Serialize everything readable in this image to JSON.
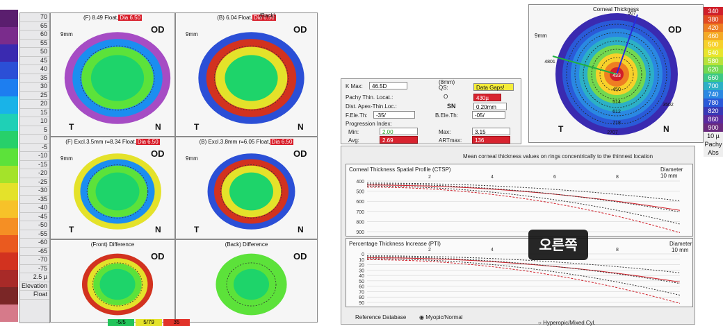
{
  "left_scale": {
    "colors": [
      "#5a1e6e",
      "#7a2c8c",
      "#3a2ab0",
      "#2b4fd6",
      "#1d7ef0",
      "#19b3e8",
      "#1fd0b6",
      "#27d06a",
      "#5ce23a",
      "#a4e32a",
      "#e4e22a",
      "#f7c229",
      "#f58f24",
      "#ea5a1f",
      "#d2321f",
      "#a82a28",
      "#7a2626",
      "#d67a8a"
    ],
    "labels": [
      "70",
      "65",
      "60",
      "55",
      "50",
      "45",
      "40",
      "35",
      "30",
      "25",
      "20",
      "15",
      "10",
      "5",
      "0",
      "-5",
      "-10",
      "-15",
      "-20",
      "-25",
      "-30",
      "-35",
      "-40",
      "-45",
      "-50",
      "-55",
      "-60",
      "-65",
      "-70",
      "-75",
      "2.5 µ",
      "Elevation",
      "Float"
    ]
  },
  "maps": [
    {
      "caption": "(F) 8.49 Float,",
      "cap_red": "Dia 6.50",
      "od": "OD",
      "t": "T",
      "n": "N",
      "mag": "9mm"
    },
    {
      "caption": "(B) 6.04 Float,",
      "cap_red": "Dia 6.50",
      "od": "OD",
      "t": "T",
      "n": "N",
      "mag": "9mm",
      "header": "(Back)"
    },
    {
      "caption": "(F) Excl.3.5mm r=8.34 Float,",
      "cap_red": "Dia 6.50",
      "od": "OD",
      "t": "T",
      "n": "N",
      "mag": "9mm"
    },
    {
      "caption": "(B) Excl.3.8mm r=6.05 Float,",
      "cap_red": "Dia 6.50",
      "od": "OD",
      "t": "T",
      "n": "N",
      "mag": "9mm"
    },
    {
      "caption": "(Front) Difference",
      "cap_red": "",
      "od": "OD",
      "t": "",
      "n": "",
      "mag": ""
    },
    {
      "caption": "(Back) Difference",
      "cap_red": "",
      "od": "OD",
      "t": "",
      "n": "",
      "mag": ""
    }
  ],
  "bottom_values": [
    "-5/5",
    "5/79",
    "35"
  ],
  "pachy_panel": {
    "kmax_label": "K Max:",
    "kmax_value": "46.5D",
    "mm_label": "(8mm)",
    "qs_label": "QS:",
    "qs_value": "Data Gaps!",
    "thin_loc_label": "Pachy Thin. Locat.:",
    "thin_loc_symbol": "O",
    "thin_loc_value": "430µ",
    "dist_label": "Dist. Apex-Thin.Loc.:",
    "dist_dir": "SN",
    "dist_value": "0.20mm",
    "fele_label": "F.Ele.Th:",
    "fele_value": "-35/",
    "bele_label": "B.Ele.Th:",
    "bele_value": "-05/",
    "prog_label": "Progression Index:",
    "min_label": "Min:",
    "min_value": "2.00",
    "max_label": "Max:",
    "max_value": "3.15",
    "avg_label": "Avg:",
    "avg_value": "2.69",
    "art_label": "ARTmax:",
    "art_value": "136"
  },
  "graphs": {
    "top_title": "Mean corneal thickness values on rings concentrically to the thinnest location",
    "ctsp_title": "Corneal Thickness Spatial Profile (CTSP)",
    "ctsp_diam": "Diameter",
    "ctsp_diam_unit": "10 mm",
    "ctsp_yticks": [
      "400",
      "500",
      "600",
      "700",
      "800",
      "900"
    ],
    "x_ticks": [
      "2",
      "4",
      "6",
      "8"
    ],
    "pti_title": "Percentage Thickness Increase (PTI)",
    "pti_diam": "Diameter",
    "pti_diam_unit": "10 mm",
    "pti_yticks": [
      "0",
      "10",
      "20",
      "30",
      "40",
      "50",
      "60",
      "70",
      "80",
      "90"
    ],
    "ref_label": "Reference Database",
    "opt1": "Myopic/Normal",
    "opt2": "Hyperopic/Mixed Cyl."
  },
  "thickness_map": {
    "title": "Corneal Thickness",
    "od": "OD",
    "t": "T",
    "n": "N",
    "mag": "9mm",
    "values": [
      "907",
      "433",
      "450",
      "514",
      "612",
      "718",
      "2707",
      "4801",
      "3502"
    ]
  },
  "right_scale": {
    "labels": [
      "340",
      "380",
      "420",
      "460",
      "500",
      "540",
      "580",
      "620",
      "660",
      "700",
      "740",
      "780",
      "820",
      "860",
      "900",
      "10 µ",
      "Pachy",
      "Abs"
    ],
    "colors": [
      "#d01f2a",
      "#e24a22",
      "#ee7e22",
      "#f5aa26",
      "#f7d12a",
      "#e8e52c",
      "#b8e23a",
      "#72d850",
      "#3cc886",
      "#2cb0c6",
      "#2a88e2",
      "#2a5ad8",
      "#3838b6",
      "#5a2a9e",
      "#6a2a7e",
      "#eeeeee",
      "#eeeeee",
      "#eeeeee"
    ]
  },
  "tooltip": "오른쪽"
}
